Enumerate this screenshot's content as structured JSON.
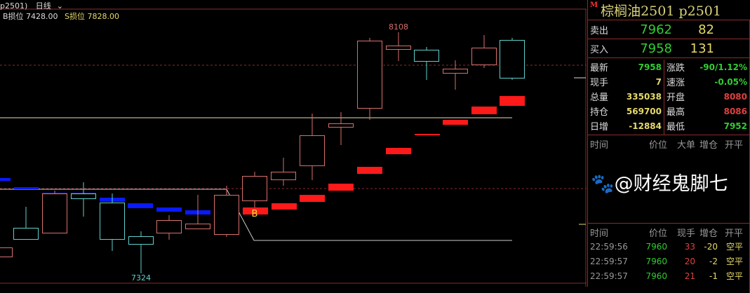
{
  "header": {
    "symbol": "p2501)",
    "period": "日线",
    "period_icon": "chevron-down-icon"
  },
  "stops": {
    "b_label": "B损位",
    "b_value": "7428.00",
    "s_label": "S损位",
    "s_value": "7828.00"
  },
  "annotations": {
    "high": "8108",
    "low": "7324",
    "signal": "B"
  },
  "colors": {
    "up": "#d8706a",
    "down": "#5fd0cc",
    "buy_signal": "#ff1a1a",
    "sell_signal": "#0a1aff",
    "grid": "#8b2b2b"
  },
  "quote": {
    "title": "棕榈油2501  p2501",
    "badge": "M",
    "ask": {
      "label": "卖出",
      "price": "7962",
      "volume": "82"
    },
    "bid": {
      "label": "买入",
      "price": "7958",
      "volume": "131"
    },
    "left": [
      {
        "k": "最新",
        "v": "7958",
        "c": "#3c3"
      },
      {
        "k": "现手",
        "v": "7",
        "c": "#e6d96a"
      },
      {
        "k": "总量",
        "v": "335038",
        "c": "#e6d96a"
      },
      {
        "k": "持仓",
        "v": "569700",
        "c": "#e6d96a"
      },
      {
        "k": "日增",
        "v": "-12884",
        "c": "#e6d96a"
      }
    ],
    "right": [
      {
        "k": "涨跌",
        "v": "-90/1.12%",
        "c": "#3c3"
      },
      {
        "k": "速涨",
        "v": "-0.05%",
        "c": "#3c3"
      },
      {
        "k": "开盘",
        "v": "8080",
        "c": "#e04040"
      },
      {
        "k": "最高",
        "v": "8086",
        "c": "#e04040"
      },
      {
        "k": "最低",
        "v": "7952",
        "c": "#3c3"
      }
    ]
  },
  "big_orders": {
    "headers": [
      "时间",
      "价位",
      "大单",
      "增仓",
      "开平"
    ]
  },
  "ticks": {
    "headers": [
      "时间",
      "价位",
      "现手",
      "增仓",
      "开平"
    ],
    "rows": [
      [
        "22:59:56",
        "7960",
        "33",
        "-20",
        "空平"
      ],
      [
        "22:59:57",
        "7960",
        "20",
        "-2",
        "空平"
      ],
      [
        "22:59:57",
        "7960",
        "21",
        "-1",
        "空平"
      ]
    ]
  },
  "watermark": "@财经鬼脚七"
}
